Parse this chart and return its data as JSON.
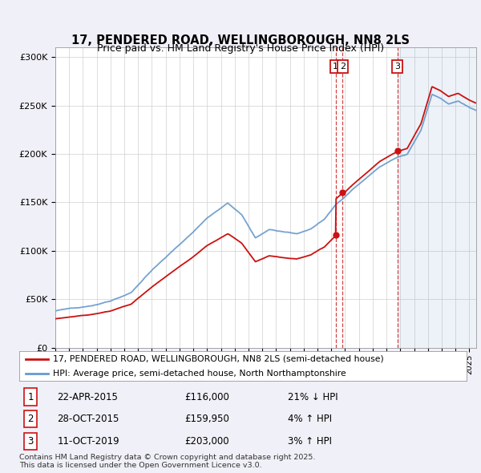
{
  "title": "17, PENDERED ROAD, WELLINGBOROUGH, NN8 2LS",
  "subtitle": "Price paid vs. HM Land Registry's House Price Index (HPI)",
  "bg_color": "#f0f0f8",
  "plot_bg_color": "#ffffff",
  "hpi_color": "#6699cc",
  "price_color": "#cc1111",
  "transactions": [
    {
      "label": "1",
      "date": "22-APR-2015",
      "price": 116000,
      "year": 2015.31,
      "note": "21% ↓ HPI"
    },
    {
      "label": "2",
      "date": "28-OCT-2015",
      "price": 159950,
      "year": 2015.82,
      "note": "4% ↑ HPI"
    },
    {
      "label": "3",
      "date": "11-OCT-2019",
      "price": 203000,
      "year": 2019.78,
      "note": "3% ↑ HPI"
    }
  ],
  "legend_house": "17, PENDERED ROAD, WELLINGBOROUGH, NN8 2LS (semi-detached house)",
  "legend_hpi": "HPI: Average price, semi-detached house, North Northamptonshire",
  "footnote": "Contains HM Land Registry data © Crown copyright and database right 2025.\nThis data is licensed under the Open Government Licence v3.0.",
  "xmin": 1995,
  "xmax": 2025.5,
  "ymin": 0,
  "ymax": 310000,
  "yticks": [
    0,
    50000,
    100000,
    150000,
    200000,
    250000,
    300000
  ]
}
